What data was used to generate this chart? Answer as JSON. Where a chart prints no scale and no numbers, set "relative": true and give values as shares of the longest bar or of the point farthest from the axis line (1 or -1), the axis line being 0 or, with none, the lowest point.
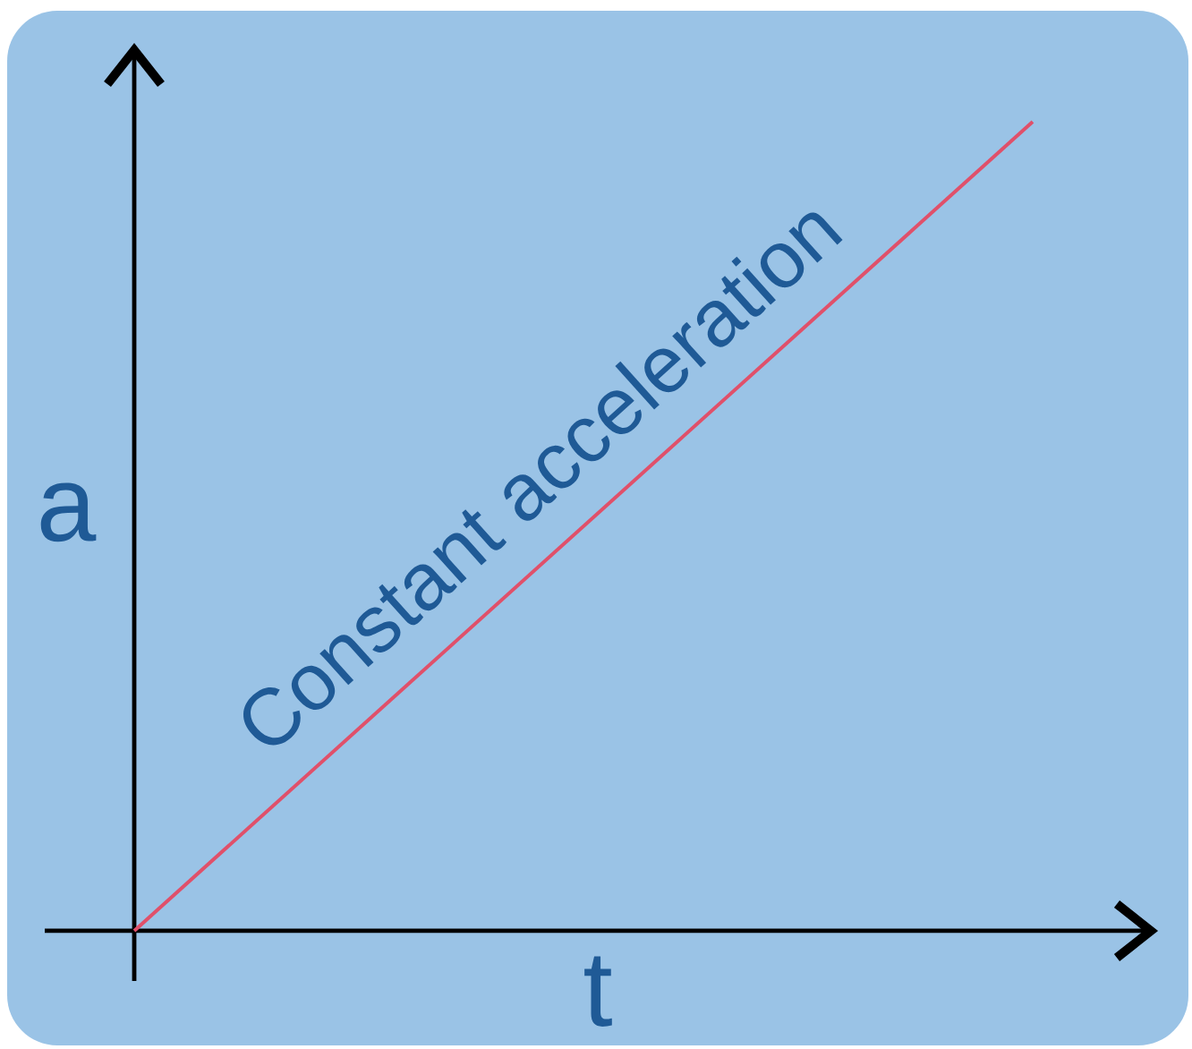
{
  "chart_data": {
    "type": "line",
    "categories": [
      null,
      null
    ],
    "values": [
      0,
      1
    ],
    "color": "#e0506a",
    "relative": true,
    "xlabel": "t",
    "ylabel": "a",
    "annotations": [
      "Constant acceleration"
    ]
  }
}
